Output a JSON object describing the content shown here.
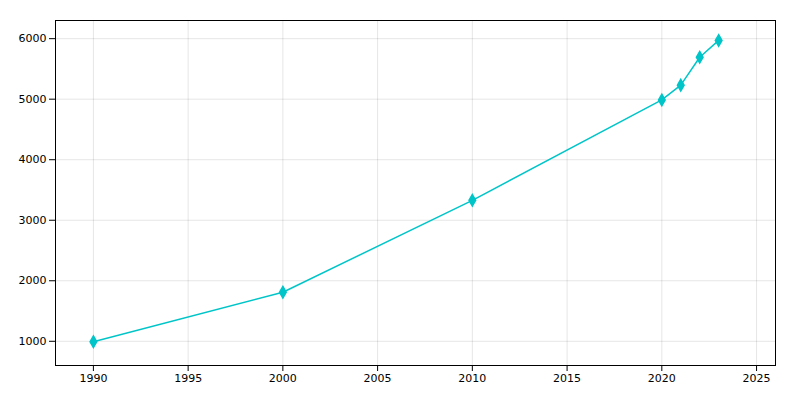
{
  "chart_data": {
    "type": "line",
    "x": [
      1990,
      2000,
      2010,
      2020,
      2021,
      2022,
      2023
    ],
    "values": [
      993,
      1810,
      3329,
      4988,
      5232,
      5693,
      5971
    ],
    "color": "#00C5C8",
    "marker": "diamond",
    "xlim": [
      1988,
      2026
    ],
    "ylim": [
      600,
      6300
    ],
    "xticks": [
      1990,
      1995,
      2000,
      2005,
      2010,
      2015,
      2020,
      2025
    ],
    "yticks": [
      1000,
      2000,
      3000,
      4000,
      5000,
      6000
    ],
    "grid": true
  }
}
